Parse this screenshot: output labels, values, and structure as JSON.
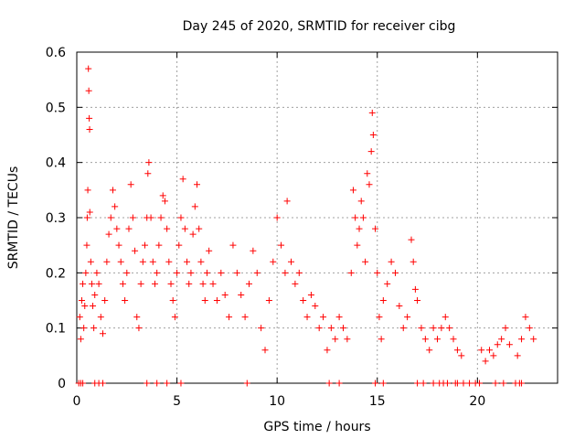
{
  "chart_data": {
    "type": "scatter",
    "title": "Day 245 of 2020, SRMTID for receiver cibg",
    "xlabel": "GPS time / hours",
    "ylabel": "SRMTID / TECUs",
    "xlim": [
      0,
      24
    ],
    "ylim": [
      0,
      0.6
    ],
    "xticks": [
      0,
      5,
      10,
      15,
      20
    ],
    "yticks": [
      0,
      0.1,
      0.2,
      0.3,
      0.4,
      0.5,
      0.6
    ],
    "ytick_labels": [
      "0",
      "0.1",
      "0.2",
      "0.3",
      "0.4",
      "0.5",
      "0.6"
    ],
    "grid": true,
    "marker": "+",
    "series": [
      {
        "name": "SRMTID",
        "color": "#ff0000",
        "points": [
          [
            0.15,
            0.12
          ],
          [
            0.2,
            0.08
          ],
          [
            0.25,
            0.15
          ],
          [
            0.3,
            0.18
          ],
          [
            0.35,
            0.1
          ],
          [
            0.4,
            0.14
          ],
          [
            0.45,
            0.2
          ],
          [
            0.5,
            0.25
          ],
          [
            0.52,
            0.3
          ],
          [
            0.55,
            0.35
          ],
          [
            0.58,
            0.57
          ],
          [
            0.6,
            0.53
          ],
          [
            0.62,
            0.48
          ],
          [
            0.64,
            0.46
          ],
          [
            0.65,
            0.31
          ],
          [
            0.7,
            0.22
          ],
          [
            0.75,
            0.18
          ],
          [
            0.8,
            0.14
          ],
          [
            0.85,
            0.1
          ],
          [
            0.9,
            0.16
          ],
          [
            1.0,
            0.2
          ],
          [
            1.1,
            0.18
          ],
          [
            1.2,
            0.12
          ],
          [
            1.3,
            0.09
          ],
          [
            1.4,
            0.15
          ],
          [
            1.5,
            0.22
          ],
          [
            1.6,
            0.27
          ],
          [
            1.7,
            0.3
          ],
          [
            1.8,
            0.35
          ],
          [
            1.9,
            0.32
          ],
          [
            2.0,
            0.28
          ],
          [
            2.1,
            0.25
          ],
          [
            2.2,
            0.22
          ],
          [
            2.3,
            0.18
          ],
          [
            2.4,
            0.15
          ],
          [
            2.5,
            0.2
          ],
          [
            2.6,
            0.28
          ],
          [
            2.7,
            0.36
          ],
          [
            2.8,
            0.3
          ],
          [
            2.9,
            0.24
          ],
          [
            3.0,
            0.12
          ],
          [
            3.1,
            0.1
          ],
          [
            3.2,
            0.18
          ],
          [
            3.3,
            0.22
          ],
          [
            3.4,
            0.25
          ],
          [
            3.5,
            0.3
          ],
          [
            3.55,
            0.38
          ],
          [
            3.6,
            0.4
          ],
          [
            3.7,
            0.3
          ],
          [
            3.8,
            0.22
          ],
          [
            3.9,
            0.18
          ],
          [
            4.0,
            0.2
          ],
          [
            4.1,
            0.25
          ],
          [
            4.2,
            0.3
          ],
          [
            4.3,
            0.34
          ],
          [
            4.4,
            0.33
          ],
          [
            4.5,
            0.28
          ],
          [
            4.6,
            0.22
          ],
          [
            4.7,
            0.18
          ],
          [
            4.8,
            0.15
          ],
          [
            4.9,
            0.12
          ],
          [
            5.0,
            0.2
          ],
          [
            5.1,
            0.25
          ],
          [
            5.2,
            0.3
          ],
          [
            5.3,
            0.37
          ],
          [
            5.4,
            0.28
          ],
          [
            5.5,
            0.22
          ],
          [
            5.6,
            0.18
          ],
          [
            5.7,
            0.2
          ],
          [
            5.8,
            0.27
          ],
          [
            5.9,
            0.32
          ],
          [
            6.0,
            0.36
          ],
          [
            6.1,
            0.28
          ],
          [
            6.2,
            0.22
          ],
          [
            6.3,
            0.18
          ],
          [
            6.4,
            0.15
          ],
          [
            6.5,
            0.2
          ],
          [
            6.6,
            0.24
          ],
          [
            6.8,
            0.18
          ],
          [
            7.0,
            0.15
          ],
          [
            7.2,
            0.2
          ],
          [
            7.4,
            0.16
          ],
          [
            7.6,
            0.12
          ],
          [
            7.8,
            0.25
          ],
          [
            8.0,
            0.2
          ],
          [
            8.2,
            0.16
          ],
          [
            8.4,
            0.12
          ],
          [
            8.6,
            0.18
          ],
          [
            8.8,
            0.24
          ],
          [
            9.0,
            0.2
          ],
          [
            9.2,
            0.1
          ],
          [
            9.4,
            0.06
          ],
          [
            9.6,
            0.15
          ],
          [
            9.8,
            0.22
          ],
          [
            10.0,
            0.3
          ],
          [
            10.2,
            0.25
          ],
          [
            10.4,
            0.2
          ],
          [
            10.5,
            0.33
          ],
          [
            10.7,
            0.22
          ],
          [
            10.9,
            0.18
          ],
          [
            11.1,
            0.2
          ],
          [
            11.3,
            0.15
          ],
          [
            11.5,
            0.12
          ],
          [
            11.7,
            0.16
          ],
          [
            11.9,
            0.14
          ],
          [
            12.1,
            0.1
          ],
          [
            12.3,
            0.12
          ],
          [
            12.5,
            0.06
          ],
          [
            12.7,
            0.1
          ],
          [
            12.9,
            0.08
          ],
          [
            13.1,
            0.12
          ],
          [
            13.3,
            0.1
          ],
          [
            13.5,
            0.08
          ],
          [
            13.7,
            0.2
          ],
          [
            13.8,
            0.35
          ],
          [
            13.9,
            0.3
          ],
          [
            14.0,
            0.25
          ],
          [
            14.1,
            0.28
          ],
          [
            14.2,
            0.33
          ],
          [
            14.3,
            0.3
          ],
          [
            14.4,
            0.22
          ],
          [
            14.5,
            0.38
          ],
          [
            14.6,
            0.36
          ],
          [
            14.7,
            0.42
          ],
          [
            14.75,
            0.49
          ],
          [
            14.8,
            0.45
          ],
          [
            14.9,
            0.28
          ],
          [
            15.0,
            0.2
          ],
          [
            15.1,
            0.12
          ],
          [
            15.2,
            0.08
          ],
          [
            15.3,
            0.15
          ],
          [
            15.5,
            0.18
          ],
          [
            15.7,
            0.22
          ],
          [
            15.9,
            0.2
          ],
          [
            16.1,
            0.14
          ],
          [
            16.3,
            0.1
          ],
          [
            16.5,
            0.12
          ],
          [
            16.7,
            0.26
          ],
          [
            16.8,
            0.22
          ],
          [
            16.9,
            0.17
          ],
          [
            17.0,
            0.15
          ],
          [
            17.2,
            0.1
          ],
          [
            17.4,
            0.08
          ],
          [
            17.6,
            0.06
          ],
          [
            17.8,
            0.1
          ],
          [
            18.0,
            0.08
          ],
          [
            18.2,
            0.1
          ],
          [
            18.4,
            0.12
          ],
          [
            18.6,
            0.1
          ],
          [
            18.8,
            0.08
          ],
          [
            19.0,
            0.06
          ],
          [
            19.2,
            0.05
          ],
          [
            20.2,
            0.06
          ],
          [
            20.4,
            0.04
          ],
          [
            20.6,
            0.06
          ],
          [
            20.8,
            0.05
          ],
          [
            21.0,
            0.07
          ],
          [
            21.2,
            0.08
          ],
          [
            21.4,
            0.1
          ],
          [
            21.6,
            0.07
          ],
          [
            22.0,
            0.05
          ],
          [
            22.2,
            0.08
          ],
          [
            22.4,
            0.12
          ],
          [
            22.6,
            0.1
          ],
          [
            22.8,
            0.08
          ]
        ],
        "zero_x": [
          0.1,
          0.2,
          0.3,
          0.9,
          1.1,
          1.3,
          3.5,
          4.0,
          4.5,
          5.2,
          8.5,
          12.6,
          13.1,
          14.9,
          15.3,
          17.0,
          17.3,
          17.8,
          18.1,
          18.3,
          18.5,
          18.9,
          19.0,
          19.3,
          19.6,
          19.9,
          20.1,
          20.9,
          21.3,
          21.9,
          22.1,
          22.2
        ]
      }
    ]
  }
}
